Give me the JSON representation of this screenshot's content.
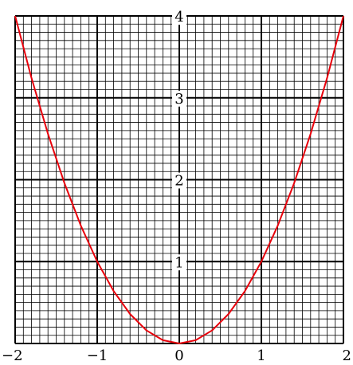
{
  "chart_data": {
    "type": "line",
    "title": "",
    "xlabel": "",
    "ylabel": "",
    "xlim": [
      -2,
      2
    ],
    "ylim": [
      0,
      4
    ],
    "grid": true,
    "x_ticks": [
      -2,
      -1,
      0,
      1,
      2
    ],
    "x_tick_labels": [
      "−2",
      "−1",
      "0",
      "1",
      "2"
    ],
    "y_ticks": [
      1,
      2,
      3,
      4
    ],
    "y_tick_labels": [
      "1",
      "2",
      "3",
      "4"
    ],
    "minor_grid_per_unit": 10,
    "series": [
      {
        "color": "#e8000b",
        "x": [
          -2,
          -1.8,
          -1.6,
          -1.4,
          -1.2,
          -1,
          -0.8,
          -0.6,
          -0.4,
          -0.2,
          0,
          0.2,
          0.4,
          0.6,
          0.8,
          1,
          1.2,
          1.4,
          1.6,
          1.8,
          2
        ],
        "y": [
          4,
          3.24,
          2.56,
          1.96,
          1.44,
          1,
          0.64,
          0.36,
          0.16,
          0.04,
          0,
          0.04,
          0.16,
          0.36,
          0.64,
          1,
          1.44,
          1.96,
          2.56,
          3.24,
          4
        ]
      }
    ]
  }
}
